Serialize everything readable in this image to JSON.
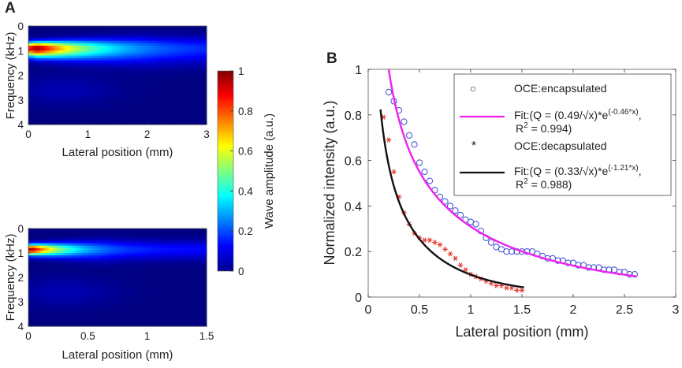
{
  "panels": {
    "a": "A",
    "b": "B"
  },
  "colorbar": {
    "label": "Wave amplitude (a.u.)",
    "ticks": [
      "0",
      "0.2",
      "0.4",
      "0.6",
      "0.8",
      "1"
    ],
    "tick_values": [
      0,
      0.2,
      0.4,
      0.6,
      0.8,
      1
    ],
    "range": [
      0,
      1
    ],
    "colormap": "jet"
  },
  "chart_data": [
    {
      "type": "heatmap",
      "panel": "A-top",
      "title": "",
      "xlabel": "Lateral position (mm)",
      "ylabel": "Frequency (kHz)",
      "xlim": [
        0,
        3
      ],
      "ylim": [
        4,
        0
      ],
      "xticks": [
        "0",
        "1",
        "2",
        "3"
      ],
      "yticks": [
        "0",
        "1",
        "2",
        "3",
        "4"
      ],
      "description_peak": {
        "frequency_khz": 0.9,
        "lateral_mm": 0.15,
        "amplitude": 1.0
      },
      "band_frequency_khz": [
        0.35,
        1.7
      ],
      "decay_length_mm": 0.95
    },
    {
      "type": "heatmap",
      "panel": "A-bottom",
      "title": "",
      "xlabel": "Lateral position (mm)",
      "ylabel": "Frequency (kHz)",
      "xlim": [
        0,
        1.5
      ],
      "ylim": [
        4,
        0
      ],
      "xticks": [
        "0",
        "0.5",
        "1",
        "1.5"
      ],
      "yticks": [
        "0",
        "1",
        "2",
        "3",
        "4"
      ],
      "description_peak": {
        "frequency_khz": 0.85,
        "lateral_mm": 0.02,
        "amplitude": 1.0
      },
      "band_frequency_khz": [
        0.4,
        1.4
      ],
      "decay_length_mm": 0.3
    },
    {
      "type": "scatter",
      "panel": "B",
      "title": "",
      "xlabel": "Lateral position (mm)",
      "ylabel": "Normalized intensity (a.u.)",
      "xlim": [
        0,
        3
      ],
      "ylim": [
        0,
        1
      ],
      "xticks": [
        "0",
        "0.5",
        "1",
        "1.5",
        "2",
        "2.5",
        "3"
      ],
      "yticks": [
        "0",
        "0.2",
        "0.4",
        "0.6",
        "0.8",
        "1"
      ],
      "legend_position": "top-right",
      "series": [
        {
          "name": "OCE:encapsulated",
          "kind": "markers",
          "marker": "circle",
          "color": "#3a4fd8",
          "x": [
            0.2,
            0.25,
            0.3,
            0.35,
            0.4,
            0.45,
            0.5,
            0.55,
            0.6,
            0.65,
            0.7,
            0.75,
            0.8,
            0.85,
            0.9,
            0.95,
            1.0,
            1.05,
            1.1,
            1.15,
            1.2,
            1.25,
            1.3,
            1.35,
            1.4,
            1.45,
            1.5,
            1.55,
            1.6,
            1.65,
            1.7,
            1.75,
            1.8,
            1.85,
            1.9,
            1.95,
            2.0,
            2.05,
            2.1,
            2.15,
            2.2,
            2.25,
            2.3,
            2.35,
            2.4,
            2.45,
            2.5,
            2.55,
            2.6
          ],
          "y": [
            0.9,
            0.86,
            0.82,
            0.77,
            0.71,
            0.67,
            0.59,
            0.55,
            0.51,
            0.47,
            0.44,
            0.42,
            0.4,
            0.38,
            0.36,
            0.34,
            0.33,
            0.32,
            0.29,
            0.26,
            0.24,
            0.22,
            0.21,
            0.2,
            0.2,
            0.2,
            0.2,
            0.2,
            0.2,
            0.19,
            0.18,
            0.17,
            0.17,
            0.16,
            0.16,
            0.15,
            0.15,
            0.14,
            0.14,
            0.13,
            0.13,
            0.13,
            0.12,
            0.12,
            0.12,
            0.11,
            0.11,
            0.1,
            0.1
          ]
        },
        {
          "name": "Fit:(Q = (0.49/√x)*e(-0.46*x), R2 = 0.994)",
          "kind": "line",
          "color": "#ee22ee",
          "formula": {
            "a": 0.49,
            "b": -0.46
          },
          "x_range": [
            0.2,
            2.62
          ]
        },
        {
          "name": "OCE:decapsulated",
          "kind": "markers",
          "marker": "asterisk",
          "color": "#e8332a",
          "x": [
            0.15,
            0.2,
            0.25,
            0.3,
            0.35,
            0.4,
            0.45,
            0.5,
            0.55,
            0.6,
            0.65,
            0.7,
            0.75,
            0.8,
            0.85,
            0.9,
            0.95,
            1.0,
            1.05,
            1.1,
            1.15,
            1.2,
            1.25,
            1.3,
            1.35,
            1.4,
            1.45,
            1.5
          ],
          "y": [
            0.79,
            0.69,
            0.55,
            0.44,
            0.37,
            0.32,
            0.28,
            0.26,
            0.25,
            0.25,
            0.24,
            0.23,
            0.21,
            0.19,
            0.17,
            0.14,
            0.12,
            0.1,
            0.09,
            0.08,
            0.07,
            0.06,
            0.05,
            0.05,
            0.04,
            0.04,
            0.03,
            0.03
          ]
        },
        {
          "name": "Fit:(Q = (0.33/√x)*e(-1.21*x), R2 = 0.988)",
          "kind": "line",
          "color": "#111111",
          "formula": {
            "a": 0.33,
            "b": -1.21
          },
          "x_range": [
            0.12,
            1.52
          ]
        }
      ],
      "legend": [
        {
          "line1": "OCE:encapsulated"
        },
        {
          "line1_pre": "Fit:(Q = (0.49/√x)*e",
          "line1_exp": "(-0.46*x)",
          "line1_post": ",",
          "line2_pre": "R",
          "line2_sup": "2",
          "line2_post": " = 0.994)"
        },
        {
          "line1": "OCE:decapsulated"
        },
        {
          "line1_pre": "Fit:(Q = (0.33/√x)*e",
          "line1_exp": "(-1.21*x)",
          "line1_post": ",",
          "line2_pre": "R",
          "line2_sup": "2",
          "line2_post": " = 0.988)"
        }
      ]
    }
  ]
}
